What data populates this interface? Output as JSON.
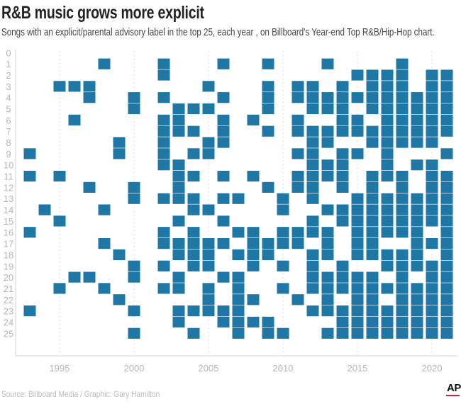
{
  "header": {
    "title": "R&B music grows more explicit",
    "subtitle": "Songs with an explicit/parental advisory label in the top 25, each year , on Billboard's Year-end Top R&B/Hip-Hop chart."
  },
  "footer": {
    "source": "Source: Billboard Media / Graphic: Gary Hamilton",
    "logo": "AP"
  },
  "colors": {
    "square": "#1f77a6",
    "axis": "#d0d0d0",
    "logo_bar": "#d0203a"
  },
  "chart_data": {
    "type": "heatmap",
    "title": "R&B music grows more explicit",
    "xlabel": "",
    "ylabel": "",
    "xlim": [
      1993,
      2021
    ],
    "ylim": [
      0,
      25
    ],
    "x_tick_labels": [
      "1995",
      "2000",
      "2005",
      "2010",
      "2015",
      "2020"
    ],
    "y_tick_labels": [
      "0",
      "1",
      "2",
      "3",
      "4",
      "5",
      "6",
      "7",
      "8",
      "9",
      "10",
      "11",
      "12",
      "13",
      "14",
      "15",
      "16",
      "17",
      "18",
      "19",
      "20",
      "21",
      "22",
      "23",
      "24",
      "25"
    ],
    "grid": "dotted vertical lines at labeled years",
    "description_of_values": "For each year, the chart ranks (1-25) that carry an explicit label",
    "years": [
      {
        "year": 1993,
        "explicit_ranks": [
          9,
          11,
          16,
          23
        ]
      },
      {
        "year": 1994,
        "explicit_ranks": [
          14
        ]
      },
      {
        "year": 1995,
        "explicit_ranks": [
          3,
          11,
          15,
          21
        ]
      },
      {
        "year": 1996,
        "explicit_ranks": [
          3,
          6,
          20
        ]
      },
      {
        "year": 1997,
        "explicit_ranks": [
          3,
          4,
          12,
          20
        ]
      },
      {
        "year": 1998,
        "explicit_ranks": [
          1,
          14,
          17,
          21
        ]
      },
      {
        "year": 1999,
        "explicit_ranks": [
          8,
          9,
          18,
          22
        ]
      },
      {
        "year": 2000,
        "explicit_ranks": [
          4,
          5,
          12,
          13,
          19,
          20,
          23,
          25
        ]
      },
      {
        "year": 2001,
        "explicit_ranks": []
      },
      {
        "year": 2002,
        "explicit_ranks": [
          1,
          2,
          4,
          6,
          7,
          8,
          9,
          10,
          13,
          16,
          17,
          19,
          21
        ]
      },
      {
        "year": 2003,
        "explicit_ranks": [
          5,
          6,
          7,
          10,
          11,
          12,
          13,
          15,
          17,
          18,
          20,
          21,
          23,
          24
        ]
      },
      {
        "year": 2004,
        "explicit_ranks": [
          5,
          7,
          9,
          11,
          13,
          14,
          16,
          17,
          18,
          19,
          23,
          25
        ]
      },
      {
        "year": 2005,
        "explicit_ranks": [
          3,
          5,
          8,
          9,
          14,
          17,
          18,
          19,
          21,
          22,
          23
        ]
      },
      {
        "year": 2006,
        "explicit_ranks": [
          1,
          4,
          6,
          7,
          8,
          11,
          13,
          15,
          17,
          20,
          23,
          24
        ]
      },
      {
        "year": 2007,
        "explicit_ranks": [
          13,
          16,
          18,
          20,
          21,
          22,
          23,
          24,
          25
        ]
      },
      {
        "year": 2008,
        "explicit_ranks": [
          6,
          11,
          16,
          17,
          18,
          19,
          22,
          24
        ]
      },
      {
        "year": 2009,
        "explicit_ranks": [
          1,
          3,
          4,
          5,
          7,
          12,
          17,
          18,
          24,
          25
        ]
      },
      {
        "year": 2010,
        "explicit_ranks": [
          13,
          14,
          16,
          17,
          19,
          21,
          25
        ]
      },
      {
        "year": 2011,
        "explicit_ranks": [
          3,
          4,
          6,
          7,
          9,
          11,
          12,
          16,
          17,
          22
        ]
      },
      {
        "year": 2012,
        "explicit_ranks": [
          3,
          4,
          5,
          7,
          8,
          9,
          10,
          11,
          12,
          13,
          15,
          16,
          18,
          19,
          20,
          21,
          23
        ]
      },
      {
        "year": 2013,
        "explicit_ranks": [
          1,
          4,
          5,
          7,
          8,
          10,
          11,
          14,
          16,
          17,
          18,
          20,
          21,
          22,
          23,
          25
        ]
      },
      {
        "year": 2014,
        "explicit_ranks": [
          3,
          4,
          5,
          6,
          7,
          9,
          10,
          11,
          12,
          14,
          15,
          19,
          20,
          21,
          23,
          24,
          25
        ]
      },
      {
        "year": 2015,
        "explicit_ranks": [
          2,
          4,
          6,
          7,
          9,
          13,
          14,
          15,
          16,
          17,
          18,
          20,
          21,
          22,
          23,
          24,
          25
        ]
      },
      {
        "year": 2016,
        "explicit_ranks": [
          2,
          3,
          4,
          5,
          7,
          8,
          11,
          12,
          13,
          14,
          15,
          16,
          17,
          18,
          20,
          21,
          22,
          23,
          24,
          25
        ]
      },
      {
        "year": 2017,
        "explicit_ranks": [
          2,
          3,
          4,
          5,
          6,
          7,
          8,
          9,
          10,
          11,
          13,
          14,
          15,
          16,
          18,
          19,
          21,
          23,
          24,
          25
        ]
      },
      {
        "year": 2018,
        "explicit_ranks": [
          1,
          2,
          3,
          4,
          5,
          6,
          7,
          8,
          11,
          12,
          13,
          14,
          15,
          16,
          18,
          19,
          20,
          21,
          22,
          23,
          24,
          25
        ]
      },
      {
        "year": 2019,
        "explicit_ranks": [
          4,
          5,
          6,
          7,
          8,
          10,
          13,
          14,
          15,
          16,
          17,
          18,
          19,
          21,
          22,
          23,
          24,
          25
        ]
      },
      {
        "year": 2020,
        "explicit_ranks": [
          2,
          3,
          4,
          5,
          6,
          7,
          8,
          10,
          11,
          12,
          13,
          14,
          15,
          17,
          19,
          20,
          21,
          22,
          23,
          24,
          25
        ]
      },
      {
        "year": 2021,
        "explicit_ranks": [
          2,
          3,
          4,
          5,
          6,
          7,
          9,
          11,
          12,
          13,
          14,
          15,
          16,
          17,
          18,
          19,
          20,
          21,
          22,
          23,
          24,
          25
        ]
      }
    ]
  }
}
